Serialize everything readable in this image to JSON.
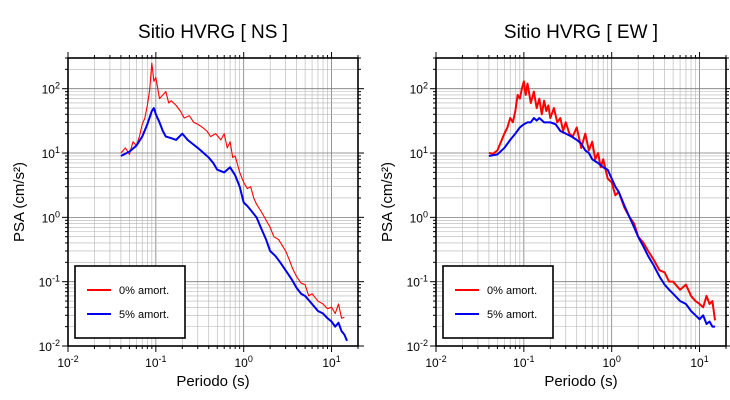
{
  "chart_data": [
    {
      "type": "line",
      "title": "Sitio HVRG [ NS ]",
      "xlabel": "Periodo (s)",
      "ylabel": "PSA (cm/s²)",
      "xscale": "log",
      "yscale": "log",
      "xlim": [
        0.01,
        20
      ],
      "ylim": [
        0.01,
        300
      ],
      "xticks": [
        {
          "v": 0.01,
          "b": "10",
          "e": "-2"
        },
        {
          "v": 0.1,
          "b": "10",
          "e": "-1"
        },
        {
          "v": 1,
          "b": "10",
          "e": "0"
        },
        {
          "v": 10,
          "b": "10",
          "e": "1"
        }
      ],
      "yticks": [
        {
          "v": 0.01,
          "b": "10",
          "e": "-2"
        },
        {
          "v": 0.1,
          "b": "10",
          "e": "-1"
        },
        {
          "v": 1,
          "b": "10",
          "e": "0"
        },
        {
          "v": 10,
          "b": "10",
          "e": "1"
        },
        {
          "v": 100,
          "b": "10",
          "e": "2"
        }
      ],
      "grid": true,
      "legend": "bottom-left",
      "series": [
        {
          "name": "0% amort.",
          "color": "#ff0000",
          "width": 1.1,
          "x": [
            0.04,
            0.045,
            0.05,
            0.055,
            0.06,
            0.065,
            0.07,
            0.075,
            0.08,
            0.085,
            0.09,
            0.095,
            0.1,
            0.11,
            0.12,
            0.13,
            0.14,
            0.15,
            0.17,
            0.19,
            0.21,
            0.24,
            0.27,
            0.3,
            0.34,
            0.38,
            0.42,
            0.48,
            0.55,
            0.6,
            0.65,
            0.7,
            0.75,
            0.8,
            0.9,
            1.0,
            1.1,
            1.2,
            1.3,
            1.4,
            1.6,
            1.8,
            2.0,
            2.2,
            2.5,
            2.8,
            3.0,
            3.3,
            3.6,
            4.0,
            4.5,
            5.0,
            5.5,
            6.0,
            7.0,
            8.0,
            9.0,
            10.0,
            11.0,
            12.0,
            13.0,
            14.0
          ],
          "y": [
            10,
            12,
            9.5,
            15,
            13,
            18,
            28,
            35,
            55,
            95,
            250,
            130,
            150,
            70,
            80,
            90,
            60,
            65,
            55,
            45,
            35,
            38,
            30,
            28,
            25,
            22,
            18,
            20,
            16,
            20,
            12,
            15,
            8.5,
            9,
            5,
            3.5,
            2.8,
            3.0,
            2.0,
            1.6,
            1.2,
            0.9,
            0.7,
            0.5,
            0.45,
            0.35,
            0.3,
            0.22,
            0.16,
            0.12,
            0.095,
            0.09,
            0.06,
            0.065,
            0.05,
            0.045,
            0.038,
            0.04,
            0.032,
            0.045,
            0.027,
            0.028
          ]
        },
        {
          "name": "5% amort.",
          "color": "#0000ee",
          "width": 2.0,
          "x": [
            0.04,
            0.05,
            0.06,
            0.07,
            0.08,
            0.09,
            0.095,
            0.1,
            0.11,
            0.12,
            0.13,
            0.15,
            0.17,
            0.2,
            0.23,
            0.26,
            0.3,
            0.35,
            0.4,
            0.45,
            0.5,
            0.6,
            0.7,
            0.8,
            0.9,
            1.0,
            1.1,
            1.2,
            1.4,
            1.6,
            1.8,
            2.0,
            2.3,
            2.6,
            3.0,
            3.5,
            4.0,
            4.5,
            5.0,
            6.0,
            7.0,
            8.0,
            9.0,
            10.0,
            11.0,
            12.0,
            13.0,
            14.0,
            15.0
          ],
          "y": [
            9.0,
            10.5,
            13,
            18,
            28,
            45,
            50,
            40,
            30,
            22,
            18,
            17,
            16,
            20,
            16,
            14,
            12,
            10,
            8.5,
            7,
            5.5,
            5,
            6,
            4.5,
            3.0,
            1.7,
            1.5,
            1.3,
            1.0,
            0.65,
            0.45,
            0.3,
            0.25,
            0.2,
            0.15,
            0.11,
            0.08,
            0.065,
            0.06,
            0.045,
            0.035,
            0.032,
            0.027,
            0.024,
            0.02,
            0.023,
            0.017,
            0.015,
            0.012
          ]
        }
      ]
    },
    {
      "type": "line",
      "title": "Sitio HVRG [ EW ]",
      "xlabel": "Periodo (s)",
      "ylabel": "PSA (cm/s²)",
      "xscale": "log",
      "yscale": "log",
      "xlim": [
        0.01,
        20
      ],
      "ylim": [
        0.01,
        300
      ],
      "xticks": [
        {
          "v": 0.01,
          "b": "10",
          "e": "-2"
        },
        {
          "v": 0.1,
          "b": "10",
          "e": "-1"
        },
        {
          "v": 1,
          "b": "10",
          "e": "0"
        },
        {
          "v": 10,
          "b": "10",
          "e": "1"
        }
      ],
      "yticks": [
        {
          "v": 0.01,
          "b": "10",
          "e": "-2"
        },
        {
          "v": 0.1,
          "b": "10",
          "e": "-1"
        },
        {
          "v": 1,
          "b": "10",
          "e": "0"
        },
        {
          "v": 10,
          "b": "10",
          "e": "1"
        },
        {
          "v": 100,
          "b": "10",
          "e": "2"
        }
      ],
      "grid": true,
      "legend": "bottom-left",
      "series": [
        {
          "name": "0% amort.",
          "color": "#ff0000",
          "width": 2.0,
          "x": [
            0.04,
            0.045,
            0.05,
            0.055,
            0.06,
            0.065,
            0.07,
            0.075,
            0.08,
            0.085,
            0.09,
            0.095,
            0.1,
            0.105,
            0.11,
            0.12,
            0.13,
            0.14,
            0.15,
            0.16,
            0.17,
            0.18,
            0.19,
            0.2,
            0.22,
            0.24,
            0.26,
            0.28,
            0.3,
            0.33,
            0.36,
            0.4,
            0.45,
            0.5,
            0.55,
            0.6,
            0.65,
            0.7,
            0.75,
            0.8,
            0.9,
            1.0,
            1.1,
            1.2,
            1.4,
            1.6,
            1.8,
            2.0,
            2.3,
            2.6,
            3.0,
            3.5,
            4.0,
            4.5,
            5.0,
            6.0,
            7.0,
            8.0,
            9.0,
            10.0,
            11.0,
            12.0,
            13.0,
            14.0,
            15.0
          ],
          "y": [
            10,
            9.8,
            11,
            15,
            20,
            25,
            35,
            30,
            45,
            80,
            70,
            100,
            130,
            80,
            120,
            60,
            90,
            50,
            70,
            40,
            65,
            45,
            55,
            35,
            50,
            30,
            35,
            22,
            30,
            20,
            18,
            25,
            12,
            20,
            11,
            15,
            8,
            10,
            6,
            8,
            4,
            3.5,
            2.2,
            2.5,
            1.4,
            1.0,
            0.8,
            0.5,
            0.4,
            0.3,
            0.22,
            0.15,
            0.14,
            0.1,
            0.1,
            0.075,
            0.09,
            0.06,
            0.05,
            0.045,
            0.04,
            0.06,
            0.045,
            0.05,
            0.025
          ]
        },
        {
          "name": "5% amort.",
          "color": "#0000ee",
          "width": 2.0,
          "x": [
            0.04,
            0.05,
            0.06,
            0.07,
            0.08,
            0.09,
            0.1,
            0.11,
            0.12,
            0.13,
            0.14,
            0.15,
            0.17,
            0.2,
            0.23,
            0.26,
            0.3,
            0.35,
            0.4,
            0.45,
            0.5,
            0.55,
            0.6,
            0.7,
            0.8,
            0.9,
            1.0,
            1.1,
            1.2,
            1.4,
            1.6,
            1.8,
            2.0,
            2.3,
            2.6,
            3.0,
            3.5,
            4.0,
            4.5,
            5.0,
            6.0,
            7.0,
            8.0,
            9.0,
            10.0,
            11.0,
            12.0,
            13.0,
            14.0,
            15.0
          ],
          "y": [
            9.0,
            9.5,
            12,
            16,
            20,
            25,
            28,
            30,
            30,
            35,
            32,
            35,
            30,
            30,
            28,
            22,
            20,
            18,
            16,
            14,
            11,
            10,
            8,
            7,
            6,
            5.5,
            4,
            3,
            2.5,
            1.5,
            1.0,
            0.7,
            0.5,
            0.35,
            0.25,
            0.18,
            0.12,
            0.09,
            0.075,
            0.065,
            0.05,
            0.045,
            0.035,
            0.03,
            0.026,
            0.03,
            0.022,
            0.024,
            0.02,
            0.02
          ]
        }
      ]
    }
  ]
}
